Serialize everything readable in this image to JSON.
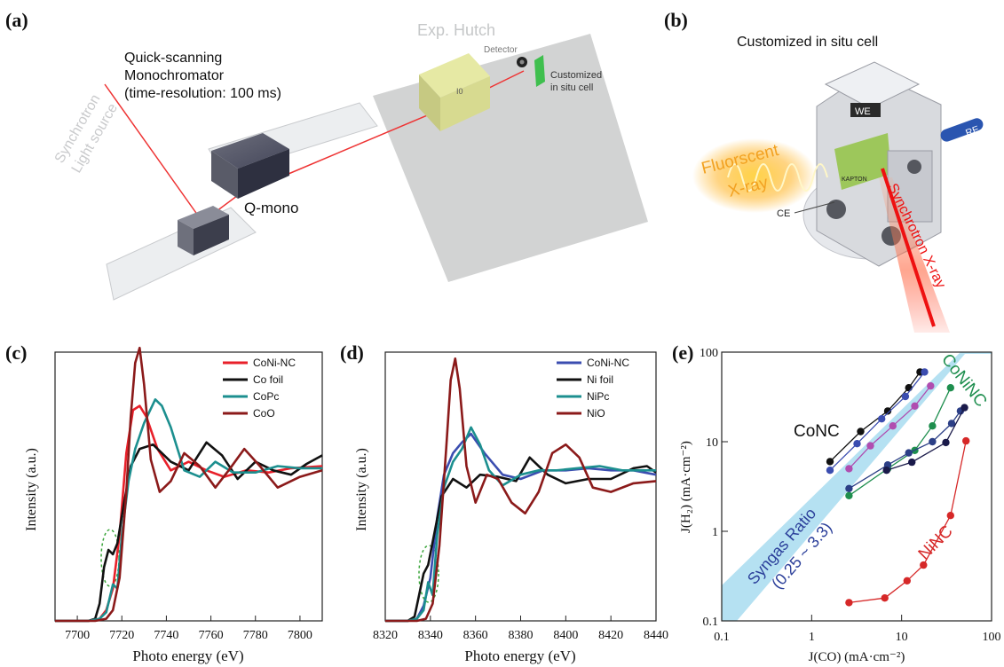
{
  "panels": {
    "a": {
      "label": "(a)",
      "synchrotron": [
        "Synchrotron",
        "Light source"
      ],
      "mono_title": [
        "Quick-scanning",
        "Monochromator",
        "(time-resolution: 100 ms)"
      ],
      "qmono": "Q-mono",
      "hutch": "Exp. Hutch",
      "detector": "Detector",
      "cell": [
        "Customized",
        "in situ cell"
      ],
      "box_mark": "I0"
    },
    "b": {
      "label": "(b)",
      "title": "Customized in situ cell",
      "we": "WE",
      "re": "RE",
      "ce": "CE",
      "kapton": "KAPTON",
      "fluor": [
        "Fluorscent",
        "X-ray"
      ],
      "sync": "Synchrotron X-ray"
    },
    "c": {
      "label": "(c)"
    },
    "d": {
      "label": "(d)"
    },
    "e": {
      "label": "(e)"
    }
  },
  "chart_data": [
    {
      "id": "c",
      "type": "line",
      "xlabel": "Photo energy (eV)",
      "ylabel": "Intensity (a.u.)",
      "xlim": [
        7690,
        7810
      ],
      "ylim": [
        0,
        1.25
      ],
      "xticks": [
        7700,
        7720,
        7740,
        7760,
        7780,
        7800
      ],
      "legend_position": "top-right",
      "series": [
        {
          "name": "CoNi-NC",
          "color": "#e8202a",
          "x": [
            7690,
            7705,
            7710,
            7713,
            7716,
            7719,
            7722,
            7725,
            7728,
            7731,
            7736,
            7742,
            7750,
            7758,
            7766,
            7776,
            7786,
            7796,
            7810
          ],
          "y": [
            0,
            0,
            0.01,
            0.05,
            0.15,
            0.4,
            0.78,
            0.98,
            1.0,
            0.95,
            0.8,
            0.7,
            0.74,
            0.7,
            0.67,
            0.7,
            0.69,
            0.71,
            0.72
          ]
        },
        {
          "name": "Co foil",
          "color": "#111111",
          "x": [
            7690,
            7705,
            7708,
            7710,
            7712,
            7714,
            7716,
            7718,
            7721,
            7724,
            7728,
            7734,
            7742,
            7750,
            7758,
            7765,
            7772,
            7780,
            7788,
            7796,
            7803,
            7810
          ],
          "y": [
            0,
            0,
            0.01,
            0.08,
            0.25,
            0.33,
            0.31,
            0.36,
            0.55,
            0.72,
            0.8,
            0.82,
            0.74,
            0.7,
            0.83,
            0.77,
            0.66,
            0.74,
            0.7,
            0.68,
            0.73,
            0.77
          ]
        },
        {
          "name": "CoPc",
          "color": "#1c8f8f",
          "x": [
            7690,
            7705,
            7710,
            7713,
            7716,
            7718,
            7720,
            7723,
            7726,
            7730,
            7735,
            7738,
            7742,
            7748,
            7755,
            7762,
            7770,
            7780,
            7790,
            7800,
            7810
          ],
          "y": [
            0,
            0,
            0.01,
            0.04,
            0.17,
            0.15,
            0.4,
            0.65,
            0.8,
            0.92,
            1.03,
            1.0,
            0.9,
            0.7,
            0.67,
            0.74,
            0.69,
            0.69,
            0.72,
            0.71,
            0.71
          ]
        },
        {
          "name": "CoO",
          "color": "#8b1a1a",
          "x": [
            7690,
            7708,
            7713,
            7716,
            7719,
            7722,
            7724,
            7726,
            7728,
            7730,
            7733,
            7737,
            7742,
            7748,
            7755,
            7762,
            7768,
            7775,
            7782,
            7790,
            7800,
            7810
          ],
          "y": [
            0,
            0,
            0.01,
            0.05,
            0.2,
            0.6,
            0.95,
            1.2,
            1.27,
            1.1,
            0.75,
            0.6,
            0.65,
            0.78,
            0.72,
            0.62,
            0.7,
            0.8,
            0.72,
            0.62,
            0.67,
            0.7
          ]
        }
      ]
    },
    {
      "id": "d",
      "type": "line",
      "xlabel": "Photo energy (eV)",
      "ylabel": "Intensity (a.u.)",
      "xlim": [
        8320,
        8440
      ],
      "ylim": [
        0,
        1.25
      ],
      "xticks": [
        8320,
        8340,
        8360,
        8380,
        8400,
        8420,
        8440
      ],
      "legend_position": "top-right",
      "series": [
        {
          "name": "CoNi-NC",
          "color": "#3b4db0",
          "x": [
            8320,
            8330,
            8334,
            8337,
            8340,
            8343,
            8346,
            8350,
            8354,
            8358,
            8364,
            8372,
            8380,
            8390,
            8400,
            8410,
            8420,
            8430,
            8440
          ],
          "y": [
            0,
            0,
            0.01,
            0.07,
            0.2,
            0.48,
            0.68,
            0.78,
            0.83,
            0.87,
            0.78,
            0.68,
            0.66,
            0.7,
            0.7,
            0.71,
            0.7,
            0.7,
            0.68
          ]
        },
        {
          "name": "Ni foil",
          "color": "#111111",
          "x": [
            8320,
            8330,
            8333,
            8335,
            8337,
            8339,
            8342,
            8345,
            8350,
            8356,
            8362,
            8370,
            8378,
            8384,
            8392,
            8400,
            8410,
            8420,
            8430,
            8436,
            8440
          ],
          "y": [
            0,
            0,
            0.02,
            0.12,
            0.22,
            0.26,
            0.42,
            0.58,
            0.66,
            0.62,
            0.68,
            0.67,
            0.65,
            0.76,
            0.68,
            0.64,
            0.66,
            0.66,
            0.71,
            0.72,
            0.69
          ]
        },
        {
          "name": "NiPc",
          "color": "#1c8f8f",
          "x": [
            8320,
            8330,
            8334,
            8337,
            8339,
            8341,
            8343,
            8346,
            8350,
            8354,
            8358,
            8362,
            8366,
            8372,
            8380,
            8388,
            8396,
            8405,
            8415,
            8425,
            8440
          ],
          "y": [
            0,
            0,
            0.01,
            0.05,
            0.18,
            0.12,
            0.4,
            0.62,
            0.74,
            0.8,
            0.9,
            0.82,
            0.7,
            0.63,
            0.68,
            0.7,
            0.7,
            0.71,
            0.72,
            0.7,
            0.7
          ]
        },
        {
          "name": "NiO",
          "color": "#8b1a1a",
          "x": [
            8320,
            8334,
            8338,
            8341,
            8344,
            8347,
            8349,
            8351,
            8353,
            8356,
            8360,
            8365,
            8370,
            8376,
            8382,
            8388,
            8394,
            8400,
            8406,
            8412,
            8420,
            8430,
            8440
          ],
          "y": [
            0,
            0,
            0.01,
            0.08,
            0.35,
            0.8,
            1.12,
            1.22,
            1.08,
            0.72,
            0.55,
            0.68,
            0.66,
            0.55,
            0.5,
            0.6,
            0.78,
            0.82,
            0.76,
            0.62,
            0.6,
            0.64,
            0.65
          ]
        }
      ]
    },
    {
      "id": "e",
      "type": "scatter",
      "xlabel": "J(CO) (mA·cm⁻²)",
      "ylabel": "J(H₂) (mA·cm⁻²)",
      "xscale": "log",
      "yscale": "log",
      "xlim": [
        0.1,
        100
      ],
      "ylim": [
        0.1,
        100
      ],
      "xticks": [
        0.1,
        1,
        10,
        100
      ],
      "yticks": [
        0.1,
        1,
        10,
        100
      ],
      "annotations": {
        "band": [
          "Syngas Ratio",
          "(0.25 ~ 3.3)"
        ],
        "conc": "CoNC",
        "coninc": "CoNiNC",
        "ninc": "NiNC"
      },
      "series": [
        {
          "color": "#111111",
          "x": [
            1.6,
            3.5,
            7,
            12,
            16
          ],
          "y": [
            6,
            13,
            22,
            40,
            60
          ]
        },
        {
          "color": "#3b4db0",
          "x": [
            1.6,
            3.2,
            6,
            11,
            18
          ],
          "y": [
            4.8,
            9.5,
            18,
            32,
            60
          ]
        },
        {
          "color": "#b04db0",
          "x": [
            2.6,
            4.5,
            8,
            14,
            21
          ],
          "y": [
            5,
            9,
            15,
            25,
            42
          ]
        },
        {
          "color": "#1e8e4e",
          "x": [
            2.6,
            7,
            14,
            22,
            35
          ],
          "y": [
            2.5,
            5,
            8,
            15,
            40
          ]
        },
        {
          "color": "#2c3f86",
          "x": [
            2.6,
            7,
            12,
            22,
            36,
            45
          ],
          "y": [
            3,
            5.5,
            7.5,
            10,
            16,
            22
          ]
        },
        {
          "color": "#1a1a4a",
          "x": [
            6.8,
            13,
            31,
            50
          ],
          "y": [
            4.8,
            5.9,
            9.8,
            24
          ]
        },
        {
          "color": "#d62828",
          "x": [
            2.6,
            6.5,
            11.5,
            17.5,
            35,
            52
          ],
          "y": [
            0.16,
            0.18,
            0.28,
            0.42,
            1.5,
            10.2
          ]
        }
      ]
    }
  ]
}
